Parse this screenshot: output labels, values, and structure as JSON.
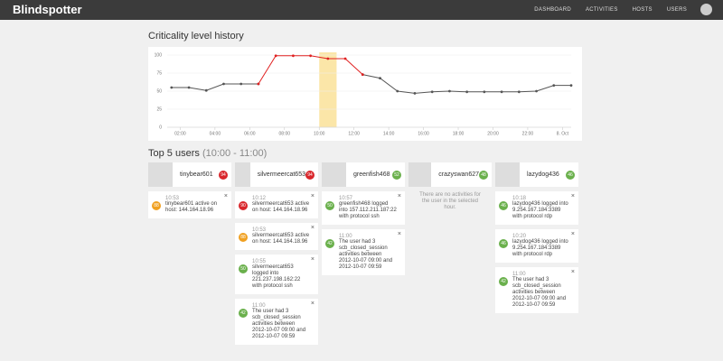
{
  "nav": {
    "logo": "Blindspotter",
    "items": [
      "DASHBOARD",
      "ACTIVITIES",
      "HOSTS",
      "USERS"
    ]
  },
  "chart_data": {
    "type": "line",
    "title": "Criticality level history",
    "x": [
      1.5,
      2.5,
      3.5,
      4.5,
      5.5,
      6.5,
      7.5,
      8.5,
      9.5,
      10.5,
      11.5,
      12.5,
      13.5,
      14.5,
      15.5,
      16.5,
      17.5,
      18.5,
      19.5,
      20.5,
      21.5,
      22.5,
      23.5,
      24.5
    ],
    "series": [
      {
        "color": "#555555",
        "values": [
          55,
          55,
          51,
          60,
          60,
          60,
          null,
          null,
          null,
          null,
          null,
          73,
          68,
          50,
          47,
          49,
          50,
          49,
          49,
          49,
          49,
          50,
          58,
          58
        ]
      },
      {
        "color": "#e02020",
        "values": [
          null,
          null,
          null,
          null,
          null,
          60,
          99,
          99,
          99,
          95,
          95,
          73,
          null,
          null,
          null,
          null,
          null,
          null,
          null,
          null,
          null,
          null,
          null,
          null
        ]
      }
    ],
    "highlight": [
      10,
      11
    ],
    "highlight_color": "#fbe6a8",
    "xlim": [
      1.25,
      24.5
    ],
    "ylim": [
      0,
      100
    ],
    "yticks": [
      0,
      25,
      50,
      75,
      100
    ],
    "xticks": [
      {
        "value": 2,
        "label": "02:00"
      },
      {
        "value": 4,
        "label": "04:00"
      },
      {
        "value": 6,
        "label": "06:00"
      },
      {
        "value": 8,
        "label": "08:00"
      },
      {
        "value": 10,
        "label": "10:00"
      },
      {
        "value": 12,
        "label": "12:00"
      },
      {
        "value": 14,
        "label": "14:00"
      },
      {
        "value": 16,
        "label": "16:00"
      },
      {
        "value": 18,
        "label": "18:00"
      },
      {
        "value": 20,
        "label": "20:00"
      },
      {
        "value": 22,
        "label": "22:00"
      },
      {
        "value": 24,
        "label": "8. Oct"
      }
    ],
    "grid": true
  },
  "users_section": {
    "title": "Top 5 users",
    "range": "(10:00 - 11:00)",
    "users": [
      {
        "name": "tinybear601",
        "score": 94,
        "color": "#d9262b",
        "activities": [
          {
            "score": 88,
            "color": "#f0a020",
            "time": "10:53",
            "text": "tinybear601 active on host: 144.164.18.96"
          }
        ]
      },
      {
        "name": "silvermeercat653",
        "score": 94,
        "color": "#d9262b",
        "activities": [
          {
            "score": 90,
            "color": "#d9262b",
            "time": "10:12",
            "text": "silvermeercat653 active on host: 144.164.18.96"
          },
          {
            "score": 88,
            "color": "#f0a020",
            "time": "10:53",
            "text": "silvermeercat653 active on host: 144.164.18.96"
          },
          {
            "score": 50,
            "color": "#6ab04c",
            "time": "10:55",
            "text": "silvermeercat653 logged into 221.237.198.162:22 with protocol ssh"
          },
          {
            "score": 42,
            "color": "#6ab04c",
            "time": "11:00",
            "text": "The user had 3 scb_closed_session activities between 2012-10-07 09:00 and 2012-10-07 09:59"
          }
        ]
      },
      {
        "name": "greenfish468",
        "score": 52,
        "color": "#6ab04c",
        "activities": [
          {
            "score": 50,
            "color": "#6ab04c",
            "time": "10:57",
            "text": "greenfish468 logged into 157.112.211.187:22 with protocol ssh"
          },
          {
            "score": 42,
            "color": "#6ab04c",
            "time": "11:00",
            "text": "The user had 3 scb_closed_session activities between 2012-10-07 09:00 and 2012-10-07 09:59"
          }
        ]
      },
      {
        "name": "crazyswan627",
        "score": 48,
        "color": "#6ab04c",
        "activities": [],
        "empty": "There are no activities for the user in the selected hour."
      },
      {
        "name": "lazydog436",
        "score": 46,
        "color": "#6ab04c",
        "activities": [
          {
            "score": 46,
            "color": "#6ab04c",
            "time": "10:18",
            "text": "lazydog436 logged into 9.254.167.184:3389 with protocol rdp"
          },
          {
            "score": 46,
            "color": "#6ab04c",
            "time": "10:20",
            "text": "lazydog436 logged into 9.254.167.184:3389 with protocol rdp"
          },
          {
            "score": 42,
            "color": "#6ab04c",
            "time": "11:00",
            "text": "The user had 3 scb_closed_session activities between 2012-10-07 09:00 and 2012-10-07 09:59"
          }
        ]
      }
    ]
  }
}
